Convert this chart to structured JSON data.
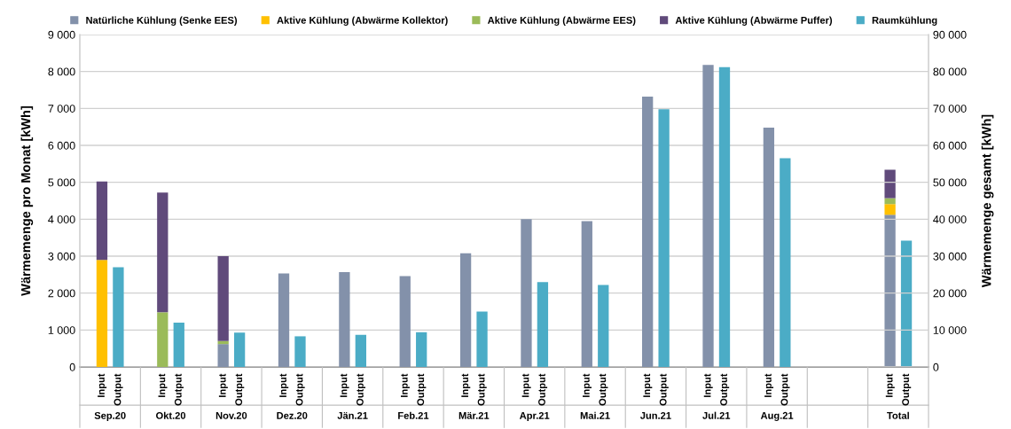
{
  "chart_data": {
    "type": "bar",
    "stacked": true,
    "categories": [
      "Input",
      "Output",
      "Input",
      "Output",
      "Input",
      "Output",
      "Input",
      "Output",
      "Input",
      "Output",
      "Input",
      "Output",
      "Input",
      "Output",
      "Input",
      "Output",
      "Input",
      "Output",
      "Input",
      "Output",
      "Input",
      "Output",
      "Input",
      "Output",
      null,
      null,
      "Input",
      "Output"
    ],
    "ylabel": "Wärmemenge pro Monat [kWh]",
    "y2label": "Wärmemenge gesamt [kWh]",
    "ylim": [
      0,
      9000
    ],
    "yticks": [
      0,
      {
        "value": 1000,
        "label": "1 000"
      },
      {
        "value": 2000,
        "label": "2 000"
      },
      {
        "value": 3000,
        "label": "3 000"
      },
      {
        "value": 4000,
        "label": "4 000"
      },
      {
        "value": 5000,
        "label": "5 000"
      },
      {
        "value": 6000,
        "label": "6 000"
      },
      {
        "value": 7000,
        "label": "7 000"
      },
      {
        "value": 8000,
        "label": "8 000"
      },
      {
        "value": 9000,
        "label": "9 000"
      }
    ],
    "y2lim": [
      0,
      90000
    ],
    "y2ticks": [
      0,
      {
        "value": 10000,
        "label": "10 000"
      },
      {
        "value": 20000,
        "label": "20 000"
      },
      {
        "value": 30000,
        "label": "30 000"
      },
      {
        "value": 40000,
        "label": "40 000"
      },
      {
        "value": 50000,
        "label": "50 000"
      },
      {
        "value": 60000,
        "label": "60 000"
      },
      {
        "value": 70000,
        "label": "70 000"
      },
      {
        "value": 80000,
        "label": "80 000"
      },
      {
        "value": 90000,
        "label": "90 000"
      }
    ],
    "grid": "y",
    "legend": "top",
    "annotations": [
      "Sep.20",
      "Okt.20",
      "Nov.20",
      "Dez.20",
      "Jän.21",
      "Feb.21",
      "Mär.21",
      "Apr.21",
      "Mai.21",
      "Jun.21",
      "Jul.21",
      "Aug.21",
      "Total"
    ],
    "series": [
      {
        "name": "Natürliche Kühlung (Senke EES)",
        "color": "#8391aa",
        "values": [
          null,
          null,
          null,
          null,
          620,
          null,
          2530,
          null,
          2570,
          null,
          2460,
          null,
          3080,
          null,
          4000,
          null,
          3950,
          null,
          7320,
          null,
          8180,
          null,
          6480,
          null,
          null,
          null,
          null,
          null
        ]
      },
      {
        "name": "Aktive Kühlung (Abwärme Kollektor)",
        "color": "#ffc000",
        "values": [
          2900,
          null,
          null,
          null,
          null,
          null,
          null,
          null,
          null,
          null,
          null,
          null,
          null,
          null,
          null,
          null,
          null,
          null,
          null,
          null,
          null,
          null,
          null,
          null,
          null,
          null,
          null,
          null
        ]
      },
      {
        "name": "Aktive Kühlung (Abwärme EES)",
        "color": "#9bbb59",
        "values": [
          null,
          null,
          1480,
          null,
          80,
          null,
          null,
          null,
          null,
          null,
          null,
          null,
          null,
          null,
          null,
          null,
          null,
          null,
          null,
          null,
          null,
          null,
          null,
          null,
          null,
          null,
          null,
          null
        ]
      },
      {
        "name": "Aktive Kühlung (Abwärme Puffer)",
        "color": "#604a7b",
        "values": [
          2120,
          null,
          3240,
          null,
          2300,
          null,
          null,
          null,
          null,
          null,
          null,
          null,
          null,
          null,
          null,
          null,
          null,
          null,
          null,
          null,
          null,
          null,
          null,
          null,
          null,
          null,
          null,
          null
        ]
      },
      {
        "name": "Raumkühlung",
        "color": "#4bacc6",
        "values": [
          null,
          2700,
          null,
          1200,
          null,
          930,
          null,
          830,
          null,
          870,
          null,
          940,
          null,
          1500,
          null,
          2300,
          null,
          2220,
          null,
          6980,
          null,
          8120,
          null,
          5650,
          null,
          null,
          null,
          null
        ]
      },
      {
        "color": "#8391aa",
        "axis": "y2",
        "values": [
          null,
          null,
          null,
          null,
          null,
          null,
          null,
          null,
          null,
          null,
          null,
          null,
          null,
          null,
          null,
          null,
          null,
          null,
          null,
          null,
          null,
          null,
          null,
          null,
          null,
          null,
          41200,
          null
        ]
      },
      {
        "color": "#ffc000",
        "axis": "y2",
        "values": [
          null,
          null,
          null,
          null,
          null,
          null,
          null,
          null,
          null,
          null,
          null,
          null,
          null,
          null,
          null,
          null,
          null,
          null,
          null,
          null,
          null,
          null,
          null,
          null,
          null,
          null,
          2900,
          null
        ]
      },
      {
        "color": "#9bbb59",
        "axis": "y2",
        "values": [
          null,
          null,
          null,
          null,
          null,
          null,
          null,
          null,
          null,
          null,
          null,
          null,
          null,
          null,
          null,
          null,
          null,
          null,
          null,
          null,
          null,
          null,
          null,
          null,
          null,
          null,
          1600,
          null
        ]
      },
      {
        "color": "#604a7b",
        "axis": "y2",
        "values": [
          null,
          null,
          null,
          null,
          null,
          null,
          null,
          null,
          null,
          null,
          null,
          null,
          null,
          null,
          null,
          null,
          null,
          null,
          null,
          null,
          null,
          null,
          null,
          null,
          null,
          null,
          7700,
          null
        ]
      },
      {
        "color": "#4bacc6",
        "axis": "y2",
        "values": [
          null,
          null,
          null,
          null,
          null,
          null,
          null,
          null,
          null,
          null,
          null,
          null,
          null,
          null,
          null,
          null,
          null,
          null,
          null,
          null,
          null,
          null,
          null,
          null,
          null,
          null,
          null,
          34200
        ]
      }
    ]
  }
}
